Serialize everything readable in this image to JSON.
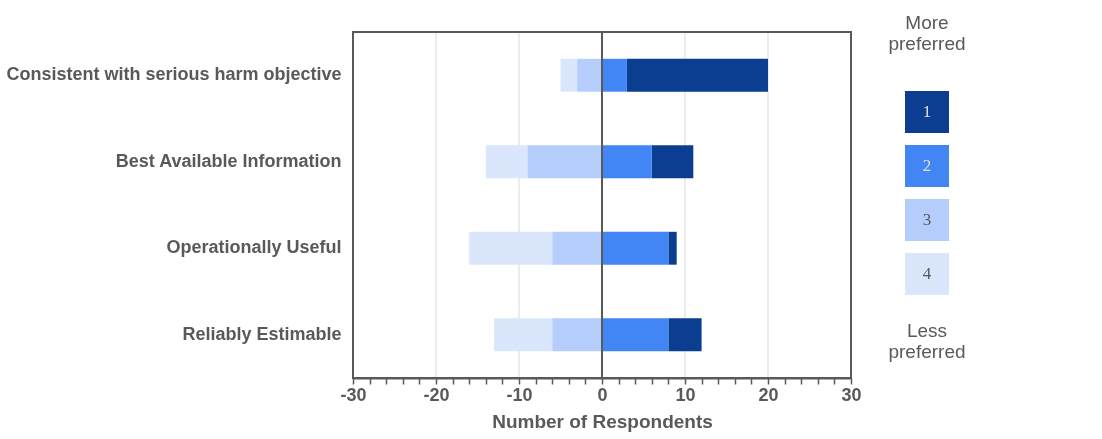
{
  "chart_data": {
    "type": "bar",
    "orientation": "horizontal",
    "xlabel": "Number of Respondents",
    "legend_title": "More preferred",
    "annotations": [
      "Less preferred"
    ],
    "categories": [
      "Consistent with serious harm objective",
      "Best Available Information",
      "Operationally Useful",
      "Reliably Estimable"
    ],
    "series": [
      {
        "name": "1",
        "color": "#0b3d91",
        "values": [
          17,
          5,
          1,
          4
        ],
        "base": [
          3,
          6,
          8,
          8
        ]
      },
      {
        "name": "2",
        "color": "#4285f4",
        "values": [
          3,
          6,
          8,
          8
        ],
        "base": [
          0,
          0,
          0,
          0
        ]
      },
      {
        "name": "3",
        "color": "#b4cdfb",
        "values": [
          -3,
          -9,
          -6,
          -6
        ],
        "base": [
          0,
          0,
          0,
          0
        ]
      },
      {
        "name": "4",
        "color": "#d9e6fc",
        "values": [
          -2,
          -5,
          -10,
          -7
        ],
        "base": [
          -3,
          -9,
          -6,
          -6
        ]
      }
    ],
    "xlim": [
      -30,
      30
    ],
    "xticks": [
      -30,
      {
        "value": -28,
        "label": null
      },
      {
        "value": -26,
        "label": null
      },
      {
        "value": -24,
        "label": null
      },
      {
        "value": -22,
        "label": null
      },
      -20,
      {
        "value": -18,
        "label": null
      },
      {
        "value": -16,
        "label": null
      },
      {
        "value": -14,
        "label": null
      },
      {
        "value": -12,
        "label": null
      },
      -10,
      {
        "value": -8,
        "label": null
      },
      {
        "value": -6,
        "label": null
      },
      {
        "value": -4,
        "label": null
      },
      {
        "value": -2,
        "label": null
      },
      0,
      {
        "value": 2,
        "label": null
      },
      {
        "value": 4,
        "label": null
      },
      {
        "value": 6,
        "label": null
      },
      {
        "value": 8,
        "label": null
      },
      10,
      {
        "value": 12,
        "label": null
      },
      {
        "value": 14,
        "label": null
      },
      {
        "value": 16,
        "label": null
      },
      {
        "value": 18,
        "label": null
      },
      20,
      {
        "value": 22,
        "label": null
      },
      {
        "value": 24,
        "label": null
      },
      {
        "value": 26,
        "label": null
      },
      {
        "value": 28,
        "label": null
      },
      30
    ],
    "grid": "x",
    "legend": "right",
    "ref_lines": [
      {
        "axis": "x",
        "value": 0,
        "color": "#595959"
      }
    ]
  }
}
